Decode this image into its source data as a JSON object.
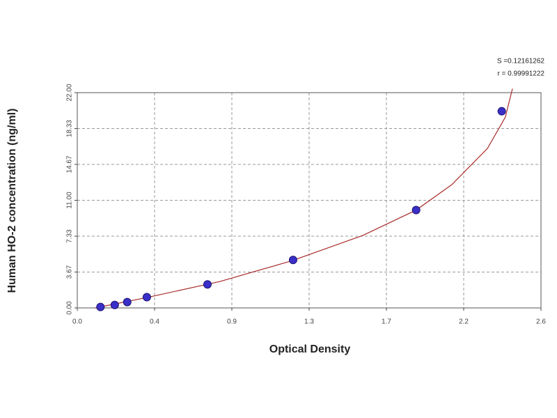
{
  "chart_data": {
    "type": "scatter",
    "x_label": "Optical Density",
    "y_label": "Human HO-2  concentration (ng/ml)",
    "annotations": [
      "S =0.12161262",
      "r = 0.99991222"
    ],
    "xlim": [
      0,
      2.6
    ],
    "xticks": [
      {
        "value": 0,
        "label": "0.0"
      },
      {
        "value": 0.4333,
        "label": "0.4"
      },
      {
        "value": 0.8667,
        "label": "0.9"
      },
      {
        "value": 1.3,
        "label": "1.3"
      },
      {
        "value": 1.7333,
        "label": "1.7"
      },
      {
        "value": 2.1667,
        "label": "2.2"
      },
      {
        "value": 2.6,
        "label": "2.6"
      }
    ],
    "ylim": [
      0,
      22
    ],
    "yticks": [
      {
        "value": 0,
        "label": "0.00"
      },
      {
        "value": 3.67,
        "label": "3.67"
      },
      {
        "value": 7.33,
        "label": "7.33"
      },
      {
        "value": 11,
        "label": "11.00"
      },
      {
        "value": 14.67,
        "label": "14.67"
      },
      {
        "value": 18.33,
        "label": "18.33"
      },
      {
        "value": 22,
        "label": "22.00"
      }
    ],
    "grid": true,
    "series": [
      {
        "style": "line",
        "color": "#a82a2a",
        "x": [
          0.1,
          0.4,
          0.8,
          1.2,
          1.6,
          1.9,
          2.1,
          2.3,
          2.4,
          2.44
        ],
        "values": [
          0,
          1.1,
          2.7,
          4.8,
          7.4,
          10.0,
          12.6,
          16.3,
          19.5,
          22.4
        ]
      },
      {
        "style": "points",
        "color": "#3b2fc9",
        "x": [
          0.13,
          0.21,
          0.28,
          0.39,
          0.73,
          1.21,
          1.9,
          2.38
        ],
        "values": [
          0.1,
          0.3,
          0.6,
          1.1,
          2.4,
          4.9,
          10.0,
          20.1
        ]
      }
    ]
  }
}
